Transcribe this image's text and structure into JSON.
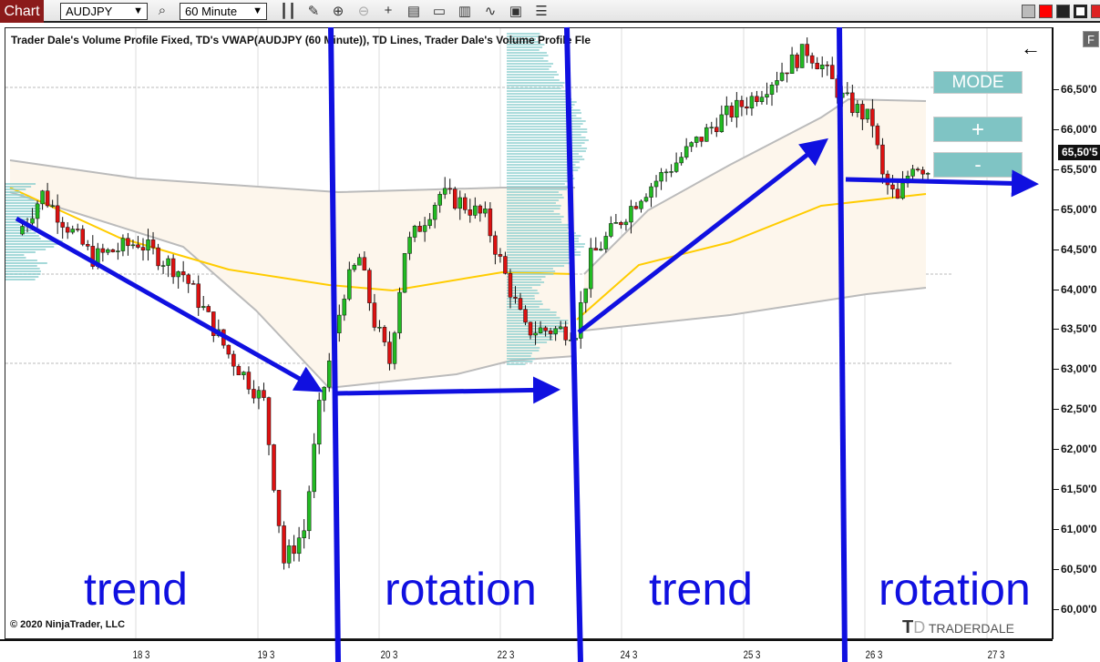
{
  "toolbar": {
    "tab": "Chart",
    "instrument": "AUDJPY",
    "timeframe": "60 Minute",
    "icons": [
      "search-icon",
      "bar-type-icon",
      "pencil-icon",
      "zoom-in-icon",
      "zoom-out-icon",
      "crosshair-icon",
      "properties-icon",
      "data-box-icon",
      "indicators-icon",
      "strategies-icon",
      "templates-icon",
      "list-icon"
    ]
  },
  "chart": {
    "title": "Trader Dale's Volume Profile Fixed, TD's VWAP(AUDJPY (60 Minute)), TD Lines, Trader Dale's Volume Profile Fle",
    "copyright": "© 2020 NinjaTrader, LLC",
    "logo": "TRADERDALE",
    "buttons": {
      "mode": "MODE",
      "plus": "+",
      "minus": "-",
      "f": "F"
    },
    "last_price": "65,50'5",
    "price_labels": [
      "66,50'0",
      "66,00'0",
      "65,50'0",
      "65,00'0",
      "64,50'0",
      "64,00'0",
      "63,50'0",
      "63,00'0",
      "62,50'0",
      "62,00'0",
      "61,50'0",
      "61,00'0",
      "60,50'0",
      "60,00'0"
    ],
    "date_labels": [
      "18 3",
      "19 3",
      "20 3",
      "22 3",
      "24 3",
      "25 3",
      "26 3",
      "27 3"
    ],
    "colors": {
      "up": "#22bb22",
      "down": "#dd1111",
      "vwap": "#ffcc00",
      "band": "#bbbbbb",
      "profile": "#8fd0d0",
      "annotation": "#1010e0"
    },
    "annotations": [
      "trend",
      "rotation",
      "trend",
      "rotation"
    ]
  },
  "chart_data": {
    "type": "candlestick",
    "ylim": [
      59.8,
      67.2
    ],
    "price_path_keypoints": [
      [
        0,
        64.7
      ],
      [
        5,
        65.2
      ],
      [
        15,
        64.4
      ],
      [
        24,
        64.6
      ],
      [
        33,
        64.2
      ],
      [
        42,
        63.2
      ],
      [
        49,
        62.6
      ],
      [
        53,
        60.6
      ],
      [
        57,
        61.0
      ],
      [
        60,
        62.5
      ],
      [
        65,
        64.0
      ],
      [
        68,
        64.4
      ],
      [
        71,
        63.6
      ],
      [
        74,
        63.1
      ],
      [
        77,
        64.5
      ],
      [
        84,
        65.2
      ],
      [
        88,
        65.1
      ],
      [
        93,
        64.9
      ],
      [
        98,
        64.0
      ],
      [
        101,
        63.5
      ],
      [
        106,
        63.5
      ],
      [
        111,
        63.5
      ],
      [
        114,
        64.4
      ],
      [
        124,
        65.2
      ],
      [
        131,
        65.6
      ],
      [
        139,
        66.1
      ],
      [
        146,
        66.4
      ],
      [
        153,
        66.8
      ],
      [
        157,
        67.0
      ],
      [
        160,
        66.8
      ],
      [
        164,
        66.4
      ],
      [
        170,
        66.1
      ],
      [
        172,
        65.4
      ],
      [
        175,
        65.1
      ],
      [
        178,
        65.6
      ],
      [
        181,
        65.5
      ]
    ]
  }
}
